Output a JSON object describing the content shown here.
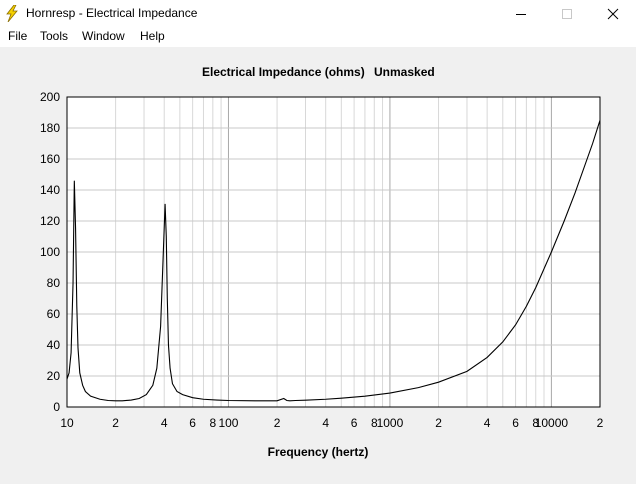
{
  "window": {
    "title": "Hornresp - Electrical Impedance"
  },
  "menu": {
    "items": [
      "File",
      "Tools",
      "Window",
      "Help"
    ]
  },
  "chart_data": {
    "type": "line",
    "title": "Electrical Impedance (ohms)",
    "subtitle": "Unmasked",
    "xlabel": "Frequency (hertz)",
    "ylabel": "",
    "xscale": "log",
    "xlim": [
      10,
      20000
    ],
    "ylim": [
      0,
      200
    ],
    "grid": true,
    "y_ticks": [
      0,
      20,
      40,
      60,
      80,
      100,
      120,
      140,
      160,
      180,
      200
    ],
    "x_tick_labels": [
      {
        "value": 10,
        "label": "10"
      },
      {
        "value": 20,
        "label": "2"
      },
      {
        "value": 40,
        "label": "4"
      },
      {
        "value": 60,
        "label": "6"
      },
      {
        "value": 80,
        "label": "8"
      },
      {
        "value": 100,
        "label": "100"
      },
      {
        "value": 200,
        "label": "2"
      },
      {
        "value": 400,
        "label": "4"
      },
      {
        "value": 600,
        "label": "6"
      },
      {
        "value": 800,
        "label": "8"
      },
      {
        "value": 1000,
        "label": "1000"
      },
      {
        "value": 2000,
        "label": "2"
      },
      {
        "value": 4000,
        "label": "4"
      },
      {
        "value": 6000,
        "label": "6"
      },
      {
        "value": 8000,
        "label": "8"
      },
      {
        "value": 10000,
        "label": "10000"
      },
      {
        "value": 20000,
        "label": "2"
      }
    ],
    "series": [
      {
        "x": [
          10,
          10.3,
          10.6,
          10.9,
          11.1,
          11.3,
          11.5,
          11.7,
          12,
          12.5,
          13,
          14,
          16,
          18,
          20,
          22,
          25,
          28,
          31,
          34,
          36,
          38,
          39.5,
          40.5,
          41.2,
          41.8,
          42.5,
          43.5,
          45,
          48,
          52,
          60,
          70,
          85,
          100,
          150,
          200,
          220,
          230,
          240,
          260,
          300,
          400,
          500,
          700,
          1000,
          1500,
          2000,
          3000,
          4000,
          5000,
          6000,
          7000,
          8000,
          10000,
          12000,
          14000,
          16000,
          18000,
          20000
        ],
        "y": [
          18,
          22,
          35,
          80,
          146,
          115,
          65,
          38,
          22,
          14,
          10,
          7,
          5,
          4.2,
          4,
          4,
          4.5,
          5.5,
          8,
          14,
          25,
          52,
          100,
          131,
          110,
          70,
          40,
          25,
          15,
          10,
          8,
          6,
          5,
          4.5,
          4.2,
          4,
          4,
          5.5,
          4.2,
          4,
          4.2,
          4.4,
          5,
          5.7,
          7,
          9,
          12.5,
          16,
          23,
          32,
          42,
          53,
          65,
          77,
          100,
          120,
          138,
          155,
          170,
          185
        ]
      }
    ]
  }
}
